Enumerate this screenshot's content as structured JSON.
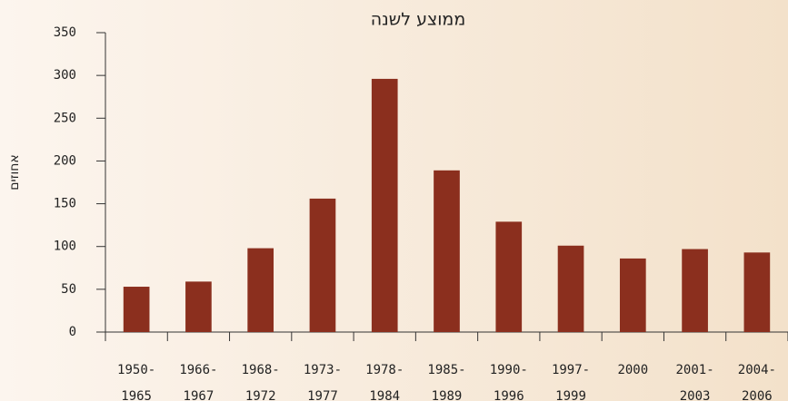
{
  "chart_data": {
    "type": "bar",
    "title": "ממוצע לשנה",
    "y_label": "אחוזים",
    "categories": [
      "1950-1965",
      "1966-1967",
      "1968-1972",
      "1973-1977",
      "1978-1984",
      "1985-1989",
      "1990-1996",
      "1997-1999",
      "2000",
      "2001-2003",
      "2004-2006"
    ],
    "values": [
      53,
      59,
      98,
      156,
      296,
      189,
      129,
      101,
      86,
      97,
      93
    ],
    "color": "#8b2f1e",
    "ylim": [
      0,
      350
    ],
    "yticks": [
      0,
      50,
      100,
      150,
      200,
      250,
      300,
      350
    ],
    "grid": false
  }
}
